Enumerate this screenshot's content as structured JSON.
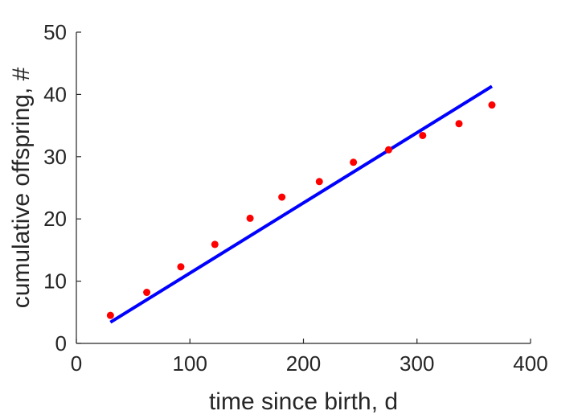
{
  "chart_data": {
    "type": "scatter",
    "xlabel": "time since birth, d",
    "ylabel": "cumulative offspring, #",
    "xlim": [
      0,
      400
    ],
    "ylim": [
      0,
      50
    ],
    "xticks": [
      0,
      100,
      200,
      300,
      400
    ],
    "yticks": [
      0,
      10,
      20,
      30,
      40,
      50
    ],
    "grid": false,
    "series": [
      {
        "kind": "scatter",
        "color": "#ff0000",
        "x": [
          30,
          62,
          92,
          122,
          153,
          181,
          214,
          244,
          275,
          305,
          337,
          366
        ],
        "y": [
          4.5,
          8.2,
          12.3,
          15.9,
          20.1,
          23.5,
          26.0,
          29.1,
          31.1,
          33.4,
          35.3,
          38.3
        ]
      },
      {
        "kind": "line",
        "color": "#0000ff",
        "x": [
          30,
          366
        ],
        "y": [
          3.4,
          41.3
        ]
      }
    ]
  }
}
